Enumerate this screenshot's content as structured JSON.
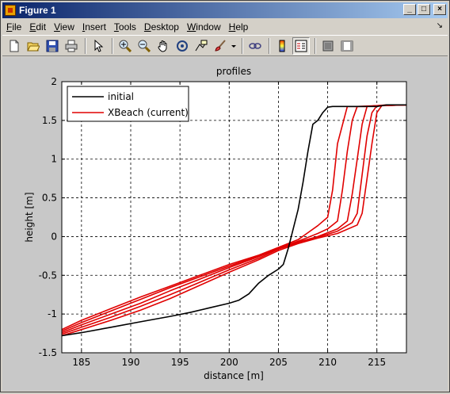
{
  "window": {
    "title": "Figure 1"
  },
  "menu": [
    {
      "pre": "",
      "ul": "F",
      "post": "ile"
    },
    {
      "pre": "",
      "ul": "E",
      "post": "dit"
    },
    {
      "pre": "",
      "ul": "V",
      "post": "iew"
    },
    {
      "pre": "",
      "ul": "I",
      "post": "nsert"
    },
    {
      "pre": "",
      "ul": "T",
      "post": "ools"
    },
    {
      "pre": "",
      "ul": "D",
      "post": "esktop"
    },
    {
      "pre": "",
      "ul": "W",
      "post": "indow"
    },
    {
      "pre": "",
      "ul": "H",
      "post": "elp"
    }
  ],
  "toolbar_icons": [
    "new-figure-icon",
    "open-file-icon",
    "save-icon",
    "print-icon",
    "select-arrow-icon",
    "zoom-in-icon",
    "zoom-out-icon",
    "pan-hand-icon",
    "rotate-3d-icon",
    "data-cursor-icon",
    "brush-icon",
    "link-icon",
    "colorbar-icon",
    "legend-icon",
    "hide-plot-tools-icon",
    "show-plot-tools-icon"
  ],
  "chart_data": {
    "type": "line",
    "title": "profiles",
    "xlabel": "distance [m]",
    "ylabel": "height [m]",
    "xlim": [
      183,
      218
    ],
    "ylim": [
      -1.5,
      2
    ],
    "xticks": [
      185,
      190,
      195,
      200,
      205,
      210,
      215
    ],
    "yticks": [
      -1.5,
      -1,
      -0.5,
      0,
      0.5,
      1,
      1.5,
      2
    ],
    "grid": true,
    "legend_position": "top-left",
    "legend": [
      "initial",
      "XBeach (current)"
    ],
    "colors": {
      "initial": "#000000",
      "xbeach": "#e00000"
    },
    "series": [
      {
        "name": "initial",
        "color": "#000000",
        "x": [
          183,
          185,
          188,
          191,
          194,
          196,
          198,
          200,
          201,
          202,
          203,
          204,
          205,
          205.5,
          206,
          206.5,
          207,
          207.5,
          208,
          208.5,
          209,
          209.5,
          210,
          210.5,
          213,
          215,
          216,
          218
        ],
        "y": [
          -1.28,
          -1.24,
          -1.17,
          -1.1,
          -1.03,
          -0.98,
          -0.92,
          -0.86,
          -0.82,
          -0.74,
          -0.6,
          -0.5,
          -0.42,
          -0.36,
          -0.15,
          0.1,
          0.35,
          0.7,
          1.1,
          1.45,
          1.5,
          1.6,
          1.67,
          1.68,
          1.68,
          1.68,
          1.7,
          1.7
        ]
      },
      {
        "name": "XBeach (current)",
        "color": "#e00000",
        "x": [
          183,
          185,
          188,
          191,
          194,
          197,
          200,
          203,
          205,
          207,
          208,
          209,
          210,
          210.5,
          211,
          212,
          213,
          214,
          215,
          216,
          218
        ],
        "y": [
          -1.2,
          -1.08,
          -0.93,
          -0.78,
          -0.64,
          -0.5,
          -0.36,
          -0.24,
          -0.14,
          -0.04,
          0.05,
          0.14,
          0.25,
          0.6,
          1.2,
          1.68,
          1.68,
          1.68,
          1.69,
          1.7,
          1.7
        ]
      },
      {
        "name": "XBeach (current)",
        "color": "#e00000",
        "x": [
          183,
          185,
          188,
          191,
          194,
          197,
          200,
          203,
          205,
          207,
          209,
          210,
          211,
          211.5,
          212,
          212.5,
          213,
          215,
          218
        ],
        "y": [
          -1.22,
          -1.11,
          -0.96,
          -0.81,
          -0.66,
          -0.52,
          -0.38,
          -0.25,
          -0.15,
          -0.06,
          0.04,
          0.1,
          0.2,
          0.6,
          1.1,
          1.5,
          1.68,
          1.69,
          1.7
        ]
      },
      {
        "name": "XBeach (current)",
        "color": "#e00000",
        "x": [
          183,
          185,
          188,
          191,
          194,
          197,
          200,
          203,
          205,
          207,
          209,
          211,
          212,
          212.5,
          213,
          213.5,
          214,
          215,
          218
        ],
        "y": [
          -1.24,
          -1.14,
          -1.0,
          -0.86,
          -0.7,
          -0.55,
          -0.4,
          -0.26,
          -0.15,
          -0.07,
          0.0,
          0.1,
          0.2,
          0.55,
          1.0,
          1.45,
          1.68,
          1.69,
          1.7
        ]
      },
      {
        "name": "XBeach (current)",
        "color": "#e00000",
        "x": [
          183,
          185,
          188,
          191,
          194,
          197,
          200,
          203,
          205,
          207,
          209,
          211,
          212.5,
          213,
          213.5,
          214,
          214.5,
          215,
          218
        ],
        "y": [
          -1.26,
          -1.17,
          -1.04,
          -0.9,
          -0.75,
          -0.59,
          -0.43,
          -0.28,
          -0.16,
          -0.08,
          -0.01,
          0.07,
          0.18,
          0.3,
          0.8,
          1.3,
          1.6,
          1.69,
          1.7
        ]
      },
      {
        "name": "XBeach (current)",
        "color": "#e00000",
        "x": [
          183,
          185,
          188,
          191,
          194,
          197,
          200,
          203,
          205,
          207,
          209,
          211,
          213,
          213.5,
          214,
          214.5,
          215,
          215.5,
          218
        ],
        "y": [
          -1.28,
          -1.2,
          -1.08,
          -0.95,
          -0.8,
          -0.63,
          -0.46,
          -0.3,
          -0.18,
          -0.09,
          -0.02,
          0.04,
          0.15,
          0.3,
          0.75,
          1.2,
          1.6,
          1.69,
          1.7
        ]
      }
    ]
  }
}
